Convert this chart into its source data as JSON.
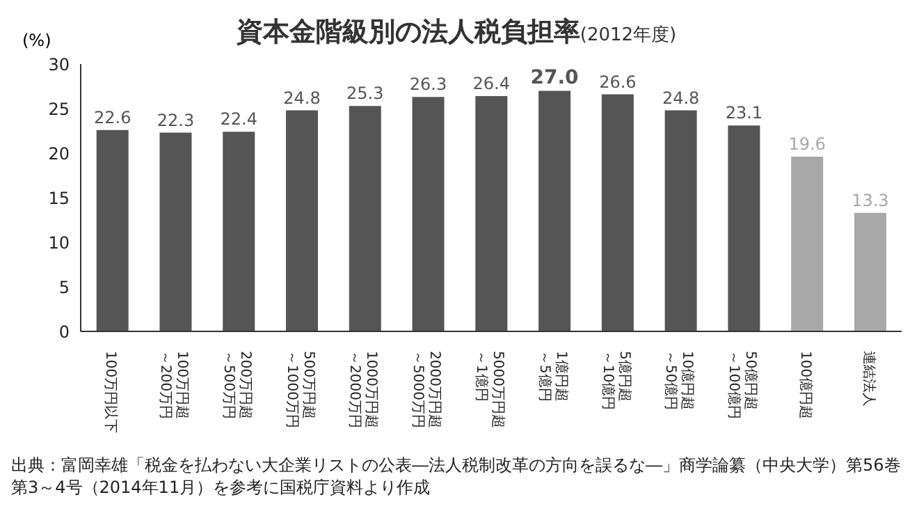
{
  "chart_data": {
    "type": "bar",
    "title": "資本金階級別の法人税負担率",
    "subtitle": "(2012年度)",
    "ylabel": "(%)",
    "categories": [
      "100万円以下",
      "100万円超～200万円",
      "200万円超～500万円",
      "500万円超～1000万円",
      "1000万円超～2000万円",
      "2000万円超～5000万円",
      "5000万円超～1億円",
      "1億円超～5億円",
      "5億円超～10億円",
      "10億円超～50億円",
      "50億円超～100億円",
      "100億円超",
      "連結法人"
    ],
    "values": [
      22.6,
      22.3,
      22.4,
      24.8,
      25.3,
      26.3,
      26.4,
      27.0,
      26.6,
      24.8,
      23.1,
      19.6,
      13.3
    ],
    "value_labels": [
      "22.6",
      "22.3",
      "22.4",
      "24.8",
      "25.3",
      "26.3",
      "26.4",
      "27.0",
      "26.6",
      "24.8",
      "23.1",
      "19.6",
      "13.3"
    ],
    "colors": [
      "#555555",
      "#555555",
      "#555555",
      "#555555",
      "#555555",
      "#555555",
      "#555555",
      "#555555",
      "#555555",
      "#555555",
      "#555555",
      "#a8a8a8",
      "#a8a8a8"
    ],
    "ylim": [
      0,
      30
    ],
    "yticks": [
      0,
      5,
      10,
      15,
      20,
      25,
      30
    ],
    "grid": false,
    "legend": false,
    "annotations": [
      "出典：富岡幸雄「税金を払わない大企業リストの公表―法人税制改革の方向を誤るな―」商学論纂（中央大学）第56巻第3～4号（2014年11月）を参考に国税庁資料より作成"
    ]
  }
}
